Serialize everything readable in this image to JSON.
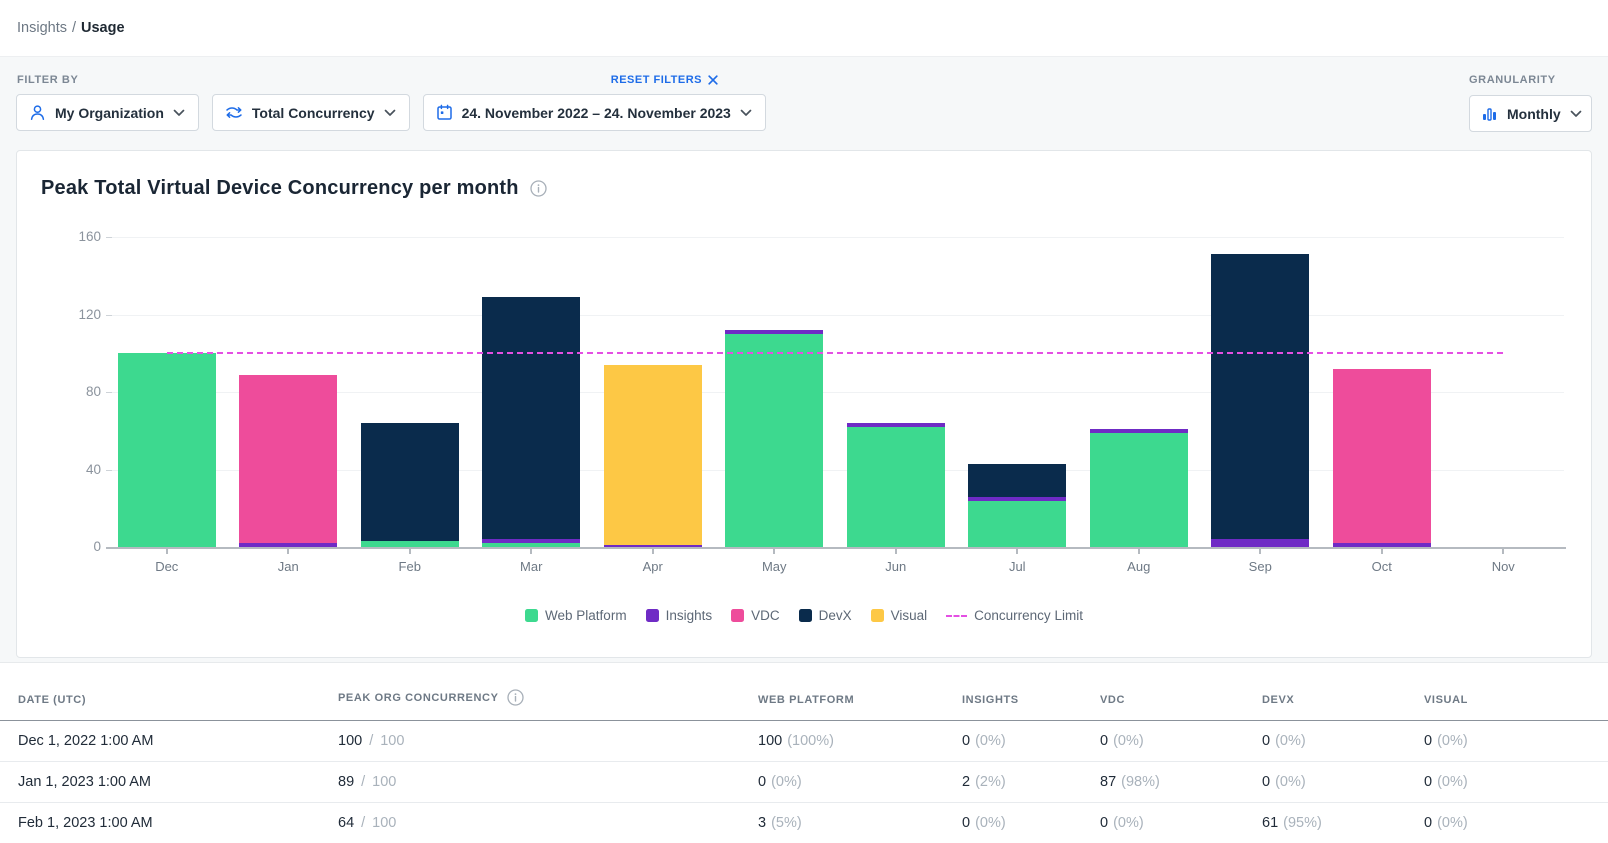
{
  "breadcrumb": {
    "section": "Insights",
    "separator": "/",
    "current": "Usage"
  },
  "filters": {
    "label": "FILTER BY",
    "reset_label": "RESET FILTERS",
    "dropdowns": [
      {
        "key": "organization",
        "icon": "user-icon",
        "label": "My Organization"
      },
      {
        "key": "metric",
        "icon": "concurrency-icon",
        "label": "Total Concurrency"
      },
      {
        "key": "daterange",
        "icon": "calendar-icon",
        "label": "24. November 2022 – 24. November 2023"
      }
    ],
    "granularity": {
      "label": "GRANULARITY",
      "icon": "bar-chart-icon",
      "value": "Monthly"
    }
  },
  "chart_data": {
    "type": "bar",
    "stacked": true,
    "title": "Peak Total Virtual Device Concurrency per month",
    "categories": [
      "Dec",
      "Jan",
      "Feb",
      "Mar",
      "Apr",
      "May",
      "Jun",
      "Jul",
      "Aug",
      "Sep",
      "Oct",
      "Nov"
    ],
    "ylim": [
      0,
      160
    ],
    "yticks": [
      0,
      40,
      80,
      120,
      160
    ],
    "grid": true,
    "legend_position": "bottom",
    "series": [
      {
        "name": "Web Platform",
        "color": "#3dd98f",
        "values": [
          100,
          0,
          3,
          2,
          0,
          110,
          62,
          24,
          59,
          0,
          0,
          0
        ]
      },
      {
        "name": "Insights",
        "color": "#6f2bc5",
        "values": [
          0,
          2,
          0,
          2,
          1,
          2,
          2,
          2,
          2,
          4,
          2,
          0
        ]
      },
      {
        "name": "VDC",
        "color": "#ee4c9b",
        "values": [
          0,
          87,
          0,
          0,
          0,
          0,
          0,
          0,
          0,
          0,
          90,
          0
        ]
      },
      {
        "name": "DevX",
        "color": "#0a2b4c",
        "values": [
          0,
          0,
          61,
          125,
          0,
          0,
          0,
          17,
          0,
          147,
          0,
          0
        ]
      },
      {
        "name": "Visual",
        "color": "#fdc845",
        "values": [
          0,
          0,
          0,
          0,
          93,
          0,
          0,
          0,
          0,
          0,
          0,
          0
        ]
      }
    ],
    "limit_line": {
      "label": "Concurrency Limit",
      "value": 100,
      "color": "#e44fe3",
      "style": "dashed"
    }
  },
  "table": {
    "headers": [
      {
        "label": "DATE (UTC)"
      },
      {
        "label": "PEAK ORG CONCURRENCY",
        "info": true
      },
      {
        "label": "WEB PLATFORM"
      },
      {
        "label": "INSIGHTS"
      },
      {
        "label": "VDC"
      },
      {
        "label": "DEVX"
      },
      {
        "label": "VISUAL"
      }
    ],
    "rows": [
      {
        "date": "Dec 1, 2022 1:00 AM",
        "peak": "100",
        "peak_max": "100",
        "cells": [
          [
            "100",
            "(100%)"
          ],
          [
            "0",
            "(0%)"
          ],
          [
            "0",
            "(0%)"
          ],
          [
            "0",
            "(0%)"
          ],
          [
            "0",
            "(0%)"
          ]
        ]
      },
      {
        "date": "Jan 1, 2023 1:00 AM",
        "peak": "89",
        "peak_max": "100",
        "cells": [
          [
            "0",
            "(0%)"
          ],
          [
            "2",
            "(2%)"
          ],
          [
            "87",
            "(98%)"
          ],
          [
            "0",
            "(0%)"
          ],
          [
            "0",
            "(0%)"
          ]
        ]
      },
      {
        "date": "Feb 1, 2023 1:00 AM",
        "peak": "64",
        "peak_max": "100",
        "cells": [
          [
            "3",
            "(5%)"
          ],
          [
            "0",
            "(0%)"
          ],
          [
            "0",
            "(0%)"
          ],
          [
            "61",
            "(95%)"
          ],
          [
            "0",
            "(0%)"
          ]
        ]
      }
    ]
  },
  "colors": {
    "accent_blue": "#1e6ce8",
    "limit_magenta": "#e44fe3"
  }
}
